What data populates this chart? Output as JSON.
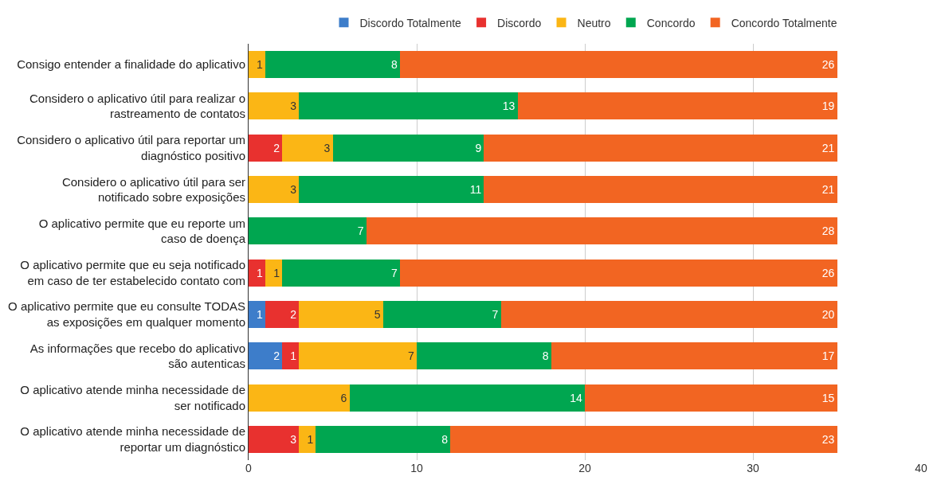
{
  "chart_data": {
    "type": "bar",
    "orientation": "horizontal",
    "stacked": true,
    "data_labels": true,
    "legend": "top",
    "grid": "x",
    "categories": [
      "Consigo entender a finalidade do aplicativo",
      "Considero o aplicativo útil para realizar o\nrastreamento de contatos",
      "Considero o aplicativo útil para reportar um\ndiagnóstico positivo",
      "Considero o aplicativo útil para ser\nnotificado sobre exposições",
      "O aplicativo permite que eu reporte um\ncaso de doença",
      "O aplicativo permite que eu seja notificado\nem caso de ter estabelecido contato com",
      "O aplicativo permite que eu consulte TODAS\nas exposições em qualquer momento",
      "As informações que recebo do aplicativo\nsão autenticas",
      "O aplicativo atende minha necessidade de\nser notificado",
      "O aplicativo atende minha necessidade de\nreportar um diagnóstico"
    ],
    "xlim": [
      0,
      40
    ],
    "xticks": [
      0,
      10,
      20,
      30,
      40
    ],
    "series": [
      {
        "name": "Discordo Totalmente",
        "color": "#3d7dca",
        "values": [
          null,
          null,
          null,
          null,
          null,
          null,
          1,
          2,
          null,
          null
        ]
      },
      {
        "name": "Discordo",
        "color": "#e8312f",
        "values": [
          null,
          null,
          2,
          null,
          null,
          1,
          2,
          1,
          null,
          3
        ]
      },
      {
        "name": "Neutro",
        "color": "#fbb615",
        "values": [
          1,
          3,
          3,
          3,
          null,
          1,
          5,
          7,
          6,
          1
        ]
      },
      {
        "name": "Concordo",
        "color": "#00a650",
        "values": [
          8,
          13,
          9,
          11,
          7,
          7,
          7,
          8,
          14,
          8
        ]
      },
      {
        "name": "Concordo Totalmente",
        "color": "#f26522",
        "values": [
          26,
          19,
          21,
          21,
          28,
          26,
          20,
          17,
          15,
          23
        ]
      }
    ]
  }
}
